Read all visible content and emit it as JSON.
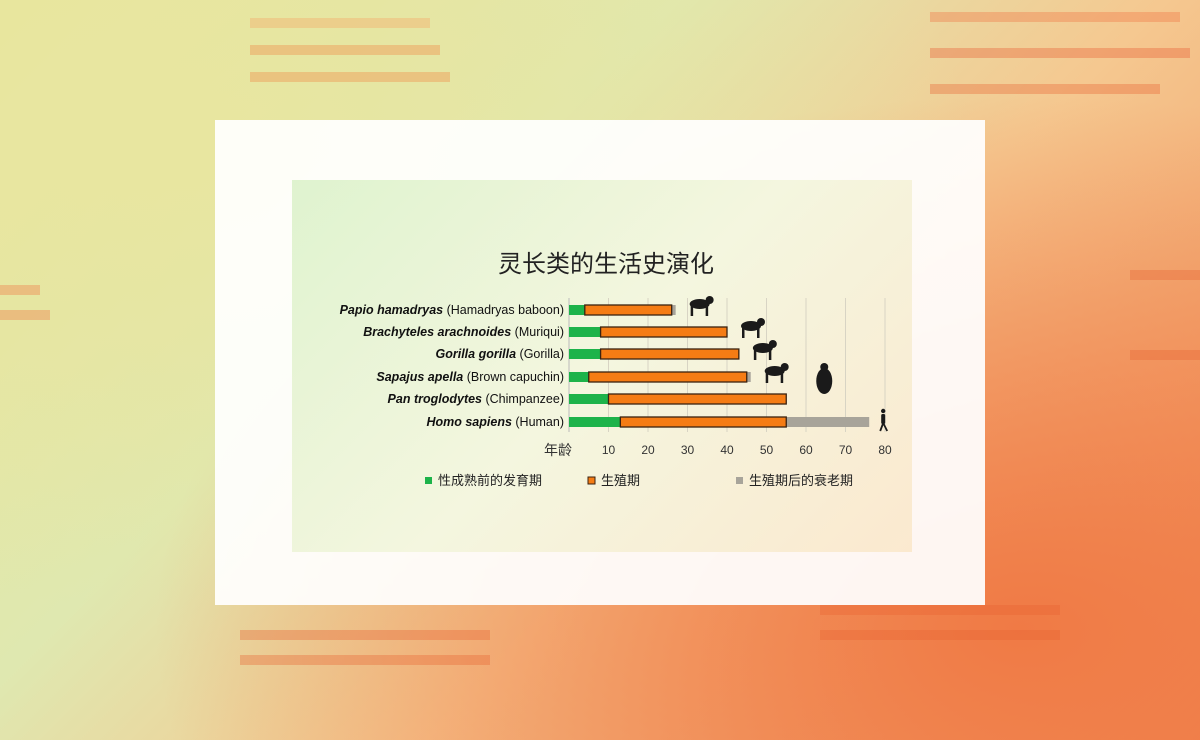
{
  "chart_data": {
    "type": "bar",
    "orientation": "horizontal-stacked",
    "title": "灵长类的生活史演化",
    "xlabel": "年龄",
    "xlim": [
      0,
      80
    ],
    "xticks": [
      10,
      20,
      30,
      40,
      50,
      60,
      70,
      80
    ],
    "grid": "vertical",
    "legend_position": "bottom",
    "categories": [
      {
        "italic": "Papio hamadryas",
        "common": " (Hamadryas baboon)"
      },
      {
        "italic": "Brachyteles arachnoides",
        "common": " (Muriqui)"
      },
      {
        "italic": "Gorilla gorilla",
        "common": " (Gorilla)"
      },
      {
        "italic": "Sapajus apella",
        "common": " (Brown capuchin)"
      },
      {
        "italic": "Pan troglodytes",
        "common": " (Chimpanzee)"
      },
      {
        "italic": "Homo sapiens",
        "common": " (Human)"
      }
    ],
    "series": [
      {
        "name": "性成熟前的发育期",
        "color": "#1db34a",
        "ends": [
          4,
          8,
          8,
          5,
          10,
          13
        ]
      },
      {
        "name": "生殖期",
        "color": "#f57c14",
        "ends": [
          26,
          40,
          43,
          45,
          55,
          55
        ]
      },
      {
        "name": "生殖期后的衰老期",
        "color": "#a8a49a",
        "ends": [
          27,
          40,
          43,
          46,
          55,
          76
        ]
      }
    ],
    "icons": [
      "baboon-silhouette",
      "muriqui-silhouette",
      "gorilla-silhouette",
      "capuchin-silhouette",
      "chimpanzee-silhouette",
      "human-silhouette"
    ]
  }
}
